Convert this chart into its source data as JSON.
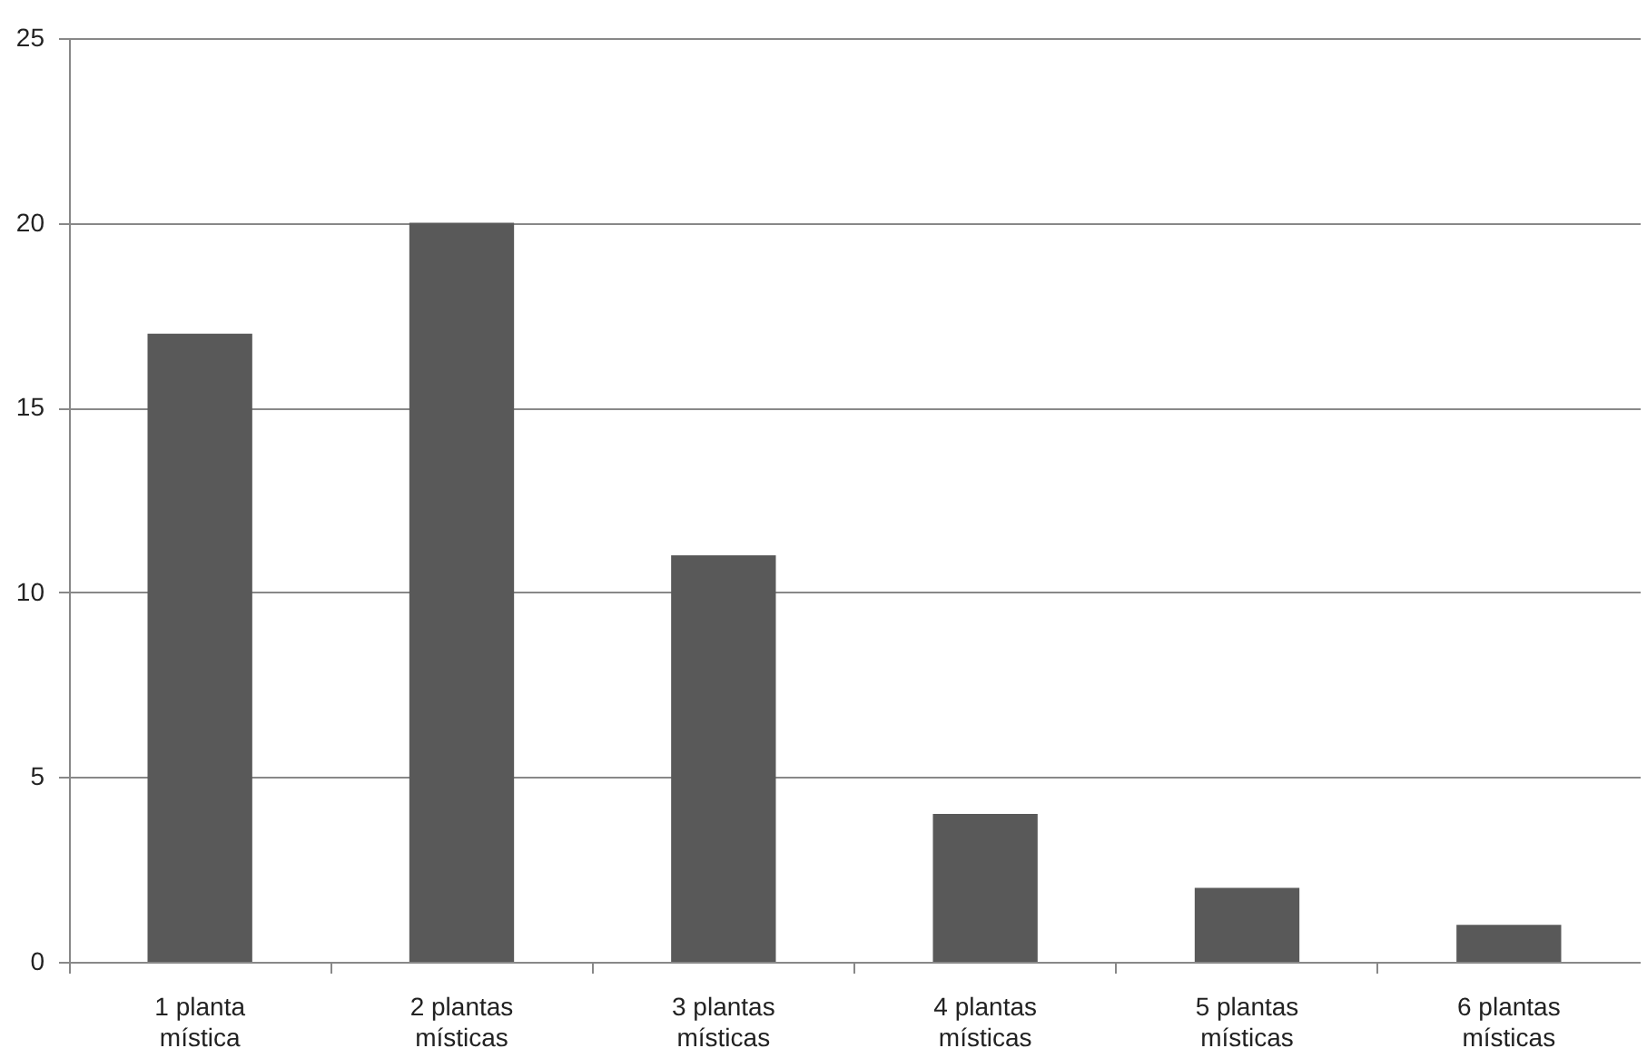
{
  "chart_data": {
    "type": "bar",
    "categories": [
      "1 planta mística",
      "2 plantas místicas",
      "3 plantas místicas",
      "4 plantas místicas",
      "5 plantas místicas",
      "6 plantas místicas"
    ],
    "values": [
      17,
      20,
      11,
      4,
      2,
      1
    ],
    "color": "#595959",
    "ylim": [
      0,
      25
    ],
    "yticks": [
      0,
      5,
      10,
      15,
      20,
      25
    ],
    "grid": "y"
  }
}
